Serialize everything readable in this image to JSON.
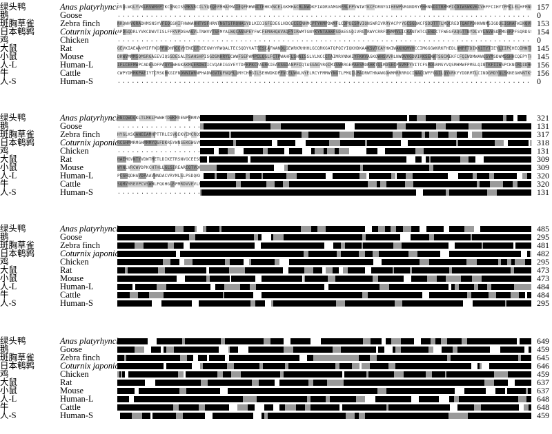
{
  "species": [
    {
      "cn": "绿头鸭",
      "en": "Anas platyrhynchos",
      "italic": true
    },
    {
      "cn": "鹅",
      "en": "Goose",
      "italic": false
    },
    {
      "cn": "斑胸草雀",
      "en": "Zebra finch",
      "italic": false
    },
    {
      "cn": "日本鹌鹑",
      "en": "Coturnix japonica",
      "italic": true
    },
    {
      "cn": "鸡",
      "en": "Chicken",
      "italic": false
    },
    {
      "cn": "大鼠",
      "en": "Rat",
      "italic": false
    },
    {
      "cn": "小鼠",
      "en": "Mouse",
      "italic": false
    },
    {
      "cn": "人-L",
      "en": "Human-L",
      "italic": false
    },
    {
      "cn": "牛",
      "en": "Cattle",
      "italic": false
    },
    {
      "cn": "人-S",
      "en": "Human-S",
      "italic": false
    }
  ],
  "blocks": [
    {
      "counts": [
        "157",
        "0",
        "153",
        "154",
        "0",
        "145",
        "145",
        "156",
        "156",
        "0"
      ]
    },
    {
      "counts": [
        "321",
        "131",
        "317",
        "318",
        "131",
        "309",
        "309",
        "320",
        "320",
        "131"
      ]
    },
    {
      "counts": [
        "485",
        "295",
        "481",
        "482",
        "295",
        "473",
        "473",
        "484",
        "484",
        "295"
      ]
    },
    {
      "counts": [
        "649",
        "459",
        "645",
        "646",
        "459",
        "637",
        "637",
        "648",
        "648",
        "459"
      ]
    }
  ],
  "colors": {
    "identical": "#000000",
    "similar": "#9a9a9a",
    "light": "#cfcfcf",
    "background": "#ffffff"
  }
}
